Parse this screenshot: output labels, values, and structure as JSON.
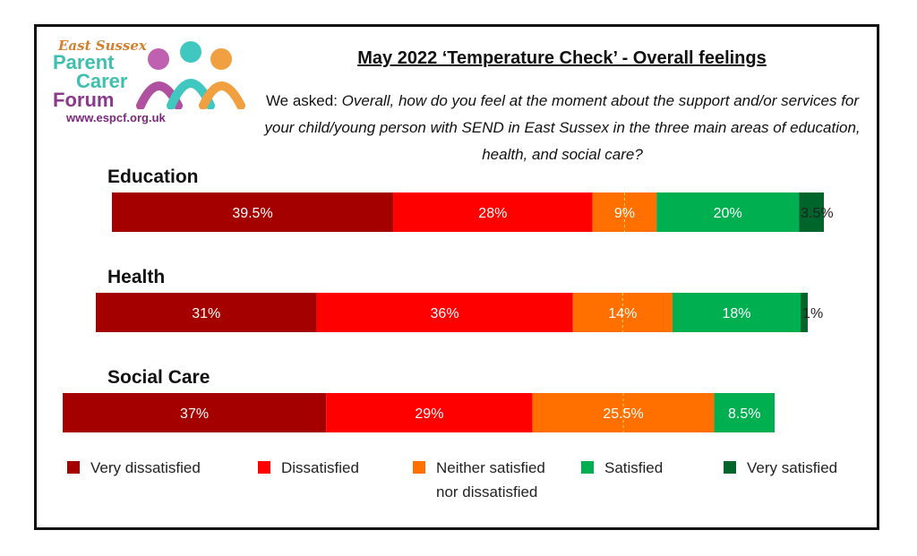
{
  "logo": {
    "line1": "East Sussex",
    "line2": "Parent",
    "line3": "Carer",
    "line4": "Forum",
    "url": "www.espcf.org.uk"
  },
  "header": {
    "title": "May 2022 ‘Temperature Check’ - Overall feelings",
    "asked_prefix": "We asked: ",
    "question": "Overall, how do you feel at the moment about the support and/or services for your child/young person with SEND in East Sussex in the three main areas of education, health, and social care?"
  },
  "chart_data": {
    "type": "bar",
    "orientation": "horizontal-stacked-100",
    "categories": [
      "Education",
      "Health",
      "Social Care"
    ],
    "series": [
      {
        "name": "Very dissatisfied",
        "color": "#a50000",
        "values": [
          39.5,
          31,
          37
        ],
        "labels": [
          "39.5%",
          "31%",
          "37%"
        ]
      },
      {
        "name": "Dissatisfied",
        "color": "#ff0000",
        "values": [
          28,
          36,
          29
        ],
        "labels": [
          "28%",
          "36%",
          "29%"
        ]
      },
      {
        "name": "Neither satisfied nor dissatisfied",
        "color": "#ff7000",
        "values": [
          9,
          14,
          25.5
        ],
        "labels": [
          "9%",
          "14%",
          "25.5%"
        ]
      },
      {
        "name": "Satisfied",
        "color": "#00b050",
        "values": [
          20,
          18,
          8.5
        ],
        "labels": [
          "20%",
          "18%",
          "8.5%"
        ]
      },
      {
        "name": "Very satisfied",
        "color": "#00652a",
        "values": [
          3.5,
          1,
          0
        ],
        "labels": [
          "3.5%",
          "1%",
          ""
        ]
      }
    ]
  },
  "legend": {
    "items": [
      {
        "label": "Very dissatisfied",
        "color": "#a50000"
      },
      {
        "label": "Dissatisfied",
        "color": "#ff0000"
      },
      {
        "label": "Neither satisfied",
        "label2": "nor dissatisfied",
        "color": "#ff7000"
      },
      {
        "label": "Satisfied",
        "color": "#00b050"
      },
      {
        "label": "Very satisfied",
        "color": "#00652a"
      }
    ]
  }
}
